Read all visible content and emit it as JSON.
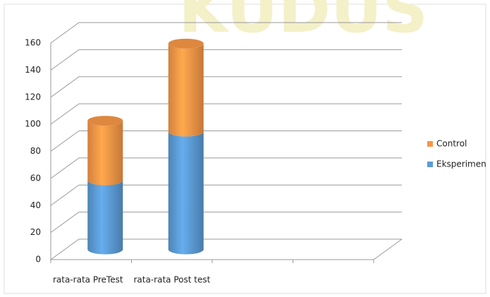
{
  "chart_data": {
    "type": "cylinder-stacked-bar",
    "watermark": "KUDUS",
    "categories": [
      "rata-rata PreTest",
      "rata-rata Post test",
      null,
      null
    ],
    "series": [
      {
        "name": "Eksperimen",
        "color": "#5b9bd5",
        "values": [
          51,
          87,
          null,
          null
        ]
      },
      {
        "name": "Control",
        "color": "#f79646",
        "values": [
          44,
          65,
          null,
          null
        ]
      }
    ],
    "ylim": [
      0,
      160
    ],
    "yticks": [
      0,
      20,
      40,
      60,
      80,
      100,
      120,
      140,
      160
    ],
    "grid": true,
    "legend": "right"
  }
}
